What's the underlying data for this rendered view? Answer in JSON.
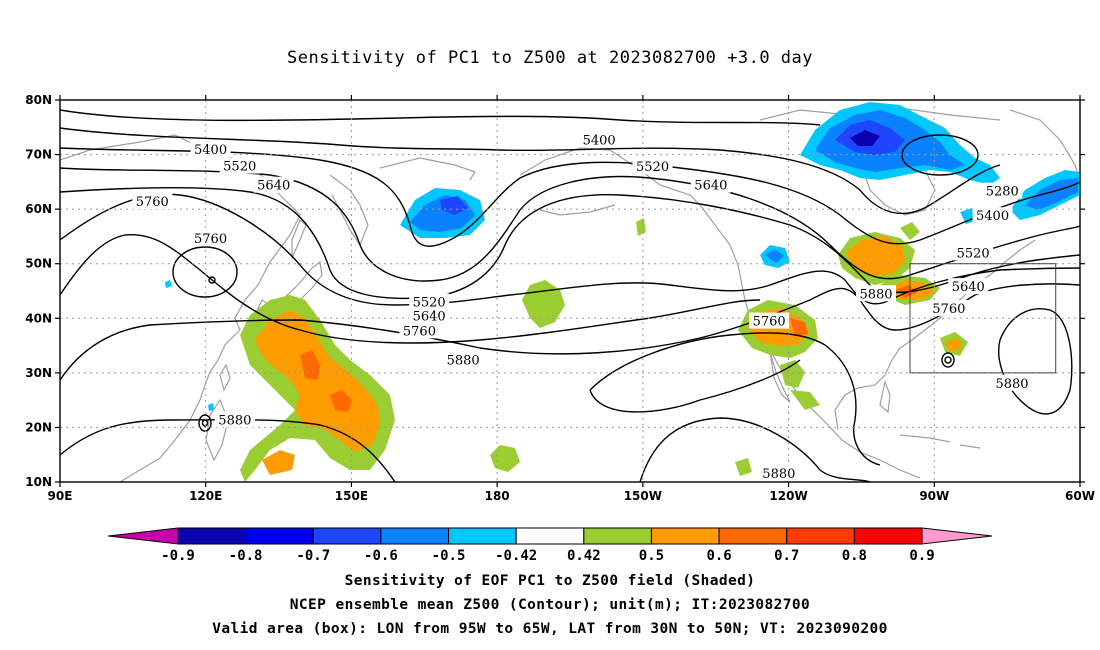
{
  "title": "Sensitivity of PC1 to Z500 at 2023082700 +3.0 day",
  "captions": [
    "Sensitivity of EOF PC1 to Z500 field (Shaded)",
    "NCEP ensemble mean Z500 (Contour); unit(m); IT:2023082700",
    "Valid area (box): LON from 95W to 65W, LAT from 30N to 50N; VT: 2023090200"
  ],
  "map": {
    "lon_range_deg_east": [
      90,
      300
    ],
    "lat_range_deg": [
      10,
      80
    ],
    "lon_tick_labels": [
      {
        "label": "90E",
        "lon": 90
      },
      {
        "label": "120E",
        "lon": 120
      },
      {
        "label": "150E",
        "lon": 150
      },
      {
        "label": "180",
        "lon": 180
      },
      {
        "label": "150W",
        "lon": 210
      },
      {
        "label": "120W",
        "lon": 240
      },
      {
        "label": "90W",
        "lon": 270
      },
      {
        "label": "60W",
        "lon": 300
      }
    ],
    "lat_tick_labels": [
      {
        "label": "10N",
        "lat": 10
      },
      {
        "label": "20N",
        "lat": 20
      },
      {
        "label": "30N",
        "lat": 30
      },
      {
        "label": "40N",
        "lat": 40
      },
      {
        "label": "50N",
        "lat": 50
      },
      {
        "label": "60N",
        "lat": 60
      },
      {
        "label": "70N",
        "lat": 70
      },
      {
        "label": "80N",
        "lat": 80
      }
    ],
    "valid_box": {
      "lon_min": 265,
      "lon_max": 295,
      "lat_min": 30,
      "lat_max": 50
    },
    "contour_labels": [
      {
        "text": "5400",
        "lon": 121,
        "lat": 70.8
      },
      {
        "text": "5520",
        "lon": 127,
        "lat": 67.8
      },
      {
        "text": "5640",
        "lon": 134,
        "lat": 64.3
      },
      {
        "text": "5760",
        "lon": 109,
        "lat": 61.3
      },
      {
        "text": "5760",
        "lon": 121,
        "lat": 54.5
      },
      {
        "text": "5400",
        "lon": 201,
        "lat": 72.6
      },
      {
        "text": "5520",
        "lon": 212,
        "lat": 67.7
      },
      {
        "text": "5640",
        "lon": 224,
        "lat": 64.3
      },
      {
        "text": "5520",
        "lon": 166,
        "lat": 42.9
      },
      {
        "text": "5640",
        "lon": 166,
        "lat": 40.3
      },
      {
        "text": "5760",
        "lon": 164,
        "lat": 37.6
      },
      {
        "text": "5880",
        "lon": 173,
        "lat": 32.3
      },
      {
        "text": "5880",
        "lon": 126,
        "lat": 21.3
      },
      {
        "text": "5760",
        "lon": 236,
        "lat": 39.4
      },
      {
        "text": "5880",
        "lon": 258,
        "lat": 44.4
      },
      {
        "text": "5280",
        "lon": 284,
        "lat": 63.2
      },
      {
        "text": "5400",
        "lon": 282,
        "lat": 58.7
      },
      {
        "text": "5520",
        "lon": 278,
        "lat": 51.9
      },
      {
        "text": "5640",
        "lon": 277,
        "lat": 45.7
      },
      {
        "text": "5760",
        "lon": 273,
        "lat": 41.7
      },
      {
        "text": "5880",
        "lon": 286,
        "lat": 28.0
      },
      {
        "text": "5880",
        "lon": 238,
        "lat": 11.5
      }
    ]
  },
  "colorbar": {
    "labels": [
      "-0.9",
      "-0.8",
      "-0.7",
      "-0.6",
      "-0.5",
      "-0.42",
      "0.42",
      "0.5",
      "0.6",
      "0.7",
      "0.8",
      "0.9"
    ],
    "colors": [
      "#0a00b0",
      "#0000f0",
      "#1e46ff",
      "#0a82ff",
      "#00c8ff",
      "#ffffff",
      "#9acd32",
      "#ff9c00",
      "#ff6a00",
      "#ff3c00",
      "#ff0000"
    ],
    "under_color": "#c800aa",
    "over_color": "#ff9ad0"
  },
  "shading_colors": {
    "negative_light": "#00c8ff",
    "negative_mid": "#0a82ff",
    "negative_strong": "#1e46ff",
    "positive_light": "#9acd32",
    "positive_mid": "#ff9c00",
    "positive_strong": "#ff6a00",
    "coastline": "#a0a0a0"
  }
}
